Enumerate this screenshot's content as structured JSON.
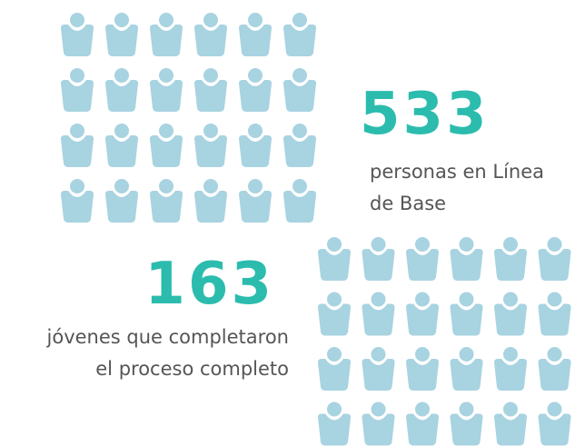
{
  "stats": [
    {
      "number": 533,
      "lines": [
        "personas  en Línea",
        "de Base"
      ]
    },
    {
      "number": 163,
      "lines": [
        "jóvenes que completaron",
        "el proceso completo"
      ]
    }
  ]
}
